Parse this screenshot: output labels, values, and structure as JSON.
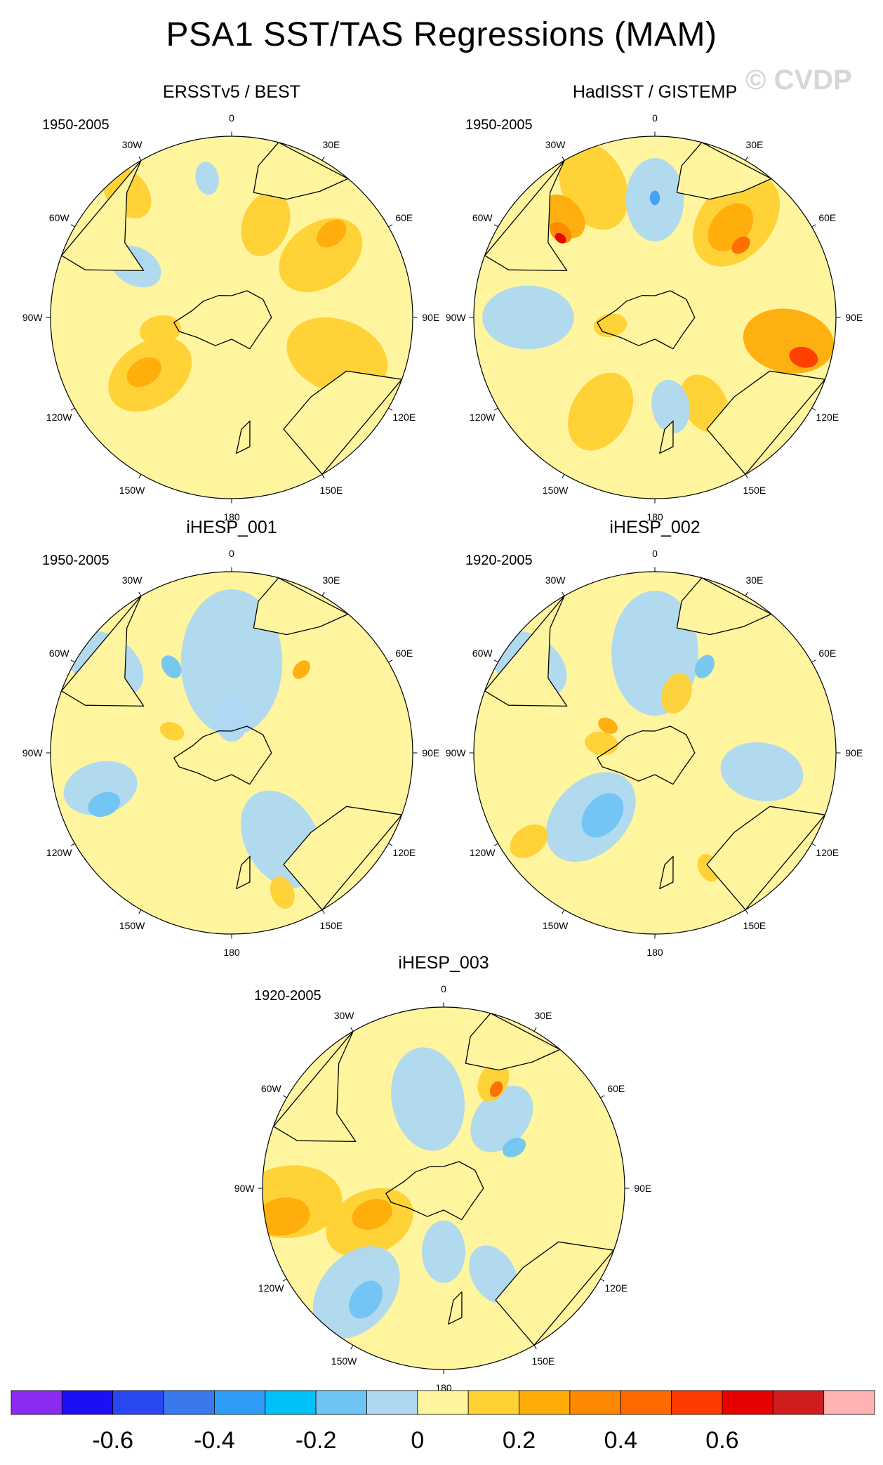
{
  "title": "PSA1 SST/TAS Regressions (MAM)",
  "watermark": "© CVDP",
  "longitude_labels": [
    "0",
    "30E",
    "60E",
    "90E",
    "120E",
    "150E",
    "180",
    "150W",
    "120W",
    "90W",
    "60W",
    "30W"
  ],
  "colors": {
    "landmass_outline": "#000000",
    "background_field": "#fff59e"
  },
  "panels": [
    {
      "id": "p1",
      "title": "ERSSTv5 / BEST",
      "period": "1950-2005",
      "blobs": [
        {
          "a": 20,
          "r": 0.55,
          "w": 0.16,
          "c": "#ffd133"
        },
        {
          "a": 55,
          "r": 0.6,
          "w": 0.22,
          "c": "#ffd133"
        },
        {
          "a": 50,
          "r": 0.72,
          "w": 0.08,
          "c": "#ffac0a"
        },
        {
          "a": -10,
          "r": 0.78,
          "w": 0.08,
          "c": "#aed8f2"
        },
        {
          "a": -60,
          "r": 0.62,
          "w": 0.06,
          "c": "#70c4f5"
        },
        {
          "a": -62,
          "r": 0.6,
          "w": 0.13,
          "c": "#aed8f2"
        },
        {
          "a": -100,
          "r": 0.4,
          "w": 0.1,
          "c": "#ffd133"
        },
        {
          "a": -125,
          "r": 0.55,
          "w": 0.22,
          "c": "#ffd133"
        },
        {
          "a": -122,
          "r": 0.57,
          "w": 0.09,
          "c": "#ffac0a"
        },
        {
          "a": 110,
          "r": 0.62,
          "w": 0.25,
          "c": "#ffd133"
        },
        {
          "a": -40,
          "r": 0.9,
          "w": 0.14,
          "c": "#ffd133"
        }
      ]
    },
    {
      "id": "p2",
      "title": "HadISST / GISTEMP",
      "period": "1950-2005",
      "blobs": [
        {
          "a": -25,
          "r": 0.8,
          "w": 0.22,
          "c": "#ffd133"
        },
        {
          "a": -42,
          "r": 0.75,
          "w": 0.12,
          "c": "#ffac0a"
        },
        {
          "a": -48,
          "r": 0.7,
          "w": 0.06,
          "c": "#ff8800"
        },
        {
          "a": -50,
          "r": 0.68,
          "w": 0.03,
          "c": "#e60000"
        },
        {
          "a": 0,
          "r": 0.65,
          "w": 0.2,
          "c": "#aed8f2"
        },
        {
          "a": 0,
          "r": 0.66,
          "w": 0.035,
          "c": "#3fa0f5"
        },
        {
          "a": 40,
          "r": 0.7,
          "w": 0.25,
          "c": "#ffd133"
        },
        {
          "a": 40,
          "r": 0.65,
          "w": 0.13,
          "c": "#ffac0a"
        },
        {
          "a": 50,
          "r": 0.62,
          "w": 0.05,
          "c": "#ff6a00"
        },
        {
          "a": 100,
          "r": 0.75,
          "w": 0.22,
          "c": "#ffac0a"
        },
        {
          "a": 105,
          "r": 0.85,
          "w": 0.07,
          "c": "#ff3a00"
        },
        {
          "a": -90,
          "r": 0.7,
          "w": 0.22,
          "c": "#aed8f2"
        },
        {
          "a": -150,
          "r": 0.6,
          "w": 0.2,
          "c": "#ffd133"
        },
        {
          "a": 150,
          "r": 0.55,
          "w": 0.15,
          "c": "#ffd133"
        },
        {
          "a": -100,
          "r": 0.25,
          "w": 0.08,
          "c": "#ffd133"
        },
        {
          "a": 170,
          "r": 0.5,
          "w": 0.13,
          "c": "#aed8f2"
        }
      ]
    },
    {
      "id": "p3",
      "title": "iHESP_001",
      "period": "1950-2005",
      "blobs": [
        {
          "a": -55,
          "r": 0.85,
          "w": 0.2,
          "c": "#aed8f2"
        },
        {
          "a": 0,
          "r": 0.5,
          "w": 0.35,
          "c": "#aed8f2"
        },
        {
          "a": -105,
          "r": 0.75,
          "w": 0.18,
          "c": "#aed8f2"
        },
        {
          "a": -112,
          "r": 0.76,
          "w": 0.08,
          "c": "#70c4f5"
        },
        {
          "a": 150,
          "r": 0.55,
          "w": 0.25,
          "c": "#aed8f2"
        },
        {
          "a": -35,
          "r": 0.58,
          "w": 0.06,
          "c": "#70c4f5"
        },
        {
          "a": 40,
          "r": 0.6,
          "w": 0.05,
          "c": "#ffac0a"
        },
        {
          "a": 160,
          "r": 0.82,
          "w": 0.08,
          "c": "#ffd133"
        },
        {
          "a": -70,
          "r": 0.35,
          "w": 0.06,
          "c": "#ffd133"
        },
        {
          "a": 0,
          "r": 0.2,
          "w": 0.12,
          "c": "#aed8f2"
        }
      ]
    },
    {
      "id": "p4",
      "title": "iHESP_002",
      "period": "1920-2005",
      "blobs": [
        {
          "a": -55,
          "r": 0.85,
          "w": 0.2,
          "c": "#aed8f2"
        },
        {
          "a": 0,
          "r": 0.55,
          "w": 0.3,
          "c": "#aed8f2"
        },
        {
          "a": 30,
          "r": 0.55,
          "w": 0.06,
          "c": "#70c4f5"
        },
        {
          "a": -135,
          "r": 0.5,
          "w": 0.25,
          "c": "#aed8f2"
        },
        {
          "a": -140,
          "r": 0.45,
          "w": 0.12,
          "c": "#70c4f5"
        },
        {
          "a": -80,
          "r": 0.3,
          "w": 0.08,
          "c": "#ffd133"
        },
        {
          "a": -60,
          "r": 0.3,
          "w": 0.05,
          "c": "#ffac0a"
        },
        {
          "a": -125,
          "r": 0.85,
          "w": 0.1,
          "c": "#ffd133"
        },
        {
          "a": 100,
          "r": 0.6,
          "w": 0.2,
          "c": "#aed8f2"
        },
        {
          "a": 155,
          "r": 0.7,
          "w": 0.07,
          "c": "#ffd133"
        },
        {
          "a": 20,
          "r": 0.35,
          "w": 0.1,
          "c": "#ffd133"
        }
      ]
    },
    {
      "id": "p5",
      "title": "iHESP_003",
      "period": "1920-2005",
      "blobs": [
        {
          "a": -95,
          "r": 0.85,
          "w": 0.25,
          "c": "#ffd133"
        },
        {
          "a": -100,
          "r": 0.9,
          "w": 0.13,
          "c": "#ffac0a"
        },
        {
          "a": -115,
          "r": 0.45,
          "w": 0.22,
          "c": "#ffd133"
        },
        {
          "a": -110,
          "r": 0.42,
          "w": 0.1,
          "c": "#ffac0a"
        },
        {
          "a": -140,
          "r": 0.75,
          "w": 0.25,
          "c": "#aed8f2"
        },
        {
          "a": -145,
          "r": 0.75,
          "w": 0.1,
          "c": "#70c4f5"
        },
        {
          "a": -10,
          "r": 0.5,
          "w": 0.25,
          "c": "#aed8f2"
        },
        {
          "a": 40,
          "r": 0.5,
          "w": 0.18,
          "c": "#aed8f2"
        },
        {
          "a": 25,
          "r": 0.65,
          "w": 0.1,
          "c": "#ffd133"
        },
        {
          "a": 28,
          "r": 0.62,
          "w": 0.04,
          "c": "#ff6a00"
        },
        {
          "a": 60,
          "r": 0.45,
          "w": 0.06,
          "c": "#70c4f5"
        },
        {
          "a": 150,
          "r": 0.55,
          "w": 0.15,
          "c": "#aed8f2"
        },
        {
          "a": 180,
          "r": 0.35,
          "w": 0.15,
          "c": "#aed8f2"
        }
      ]
    }
  ],
  "colorbar": {
    "colors": [
      "#8b2bf0",
      "#1a0ff5",
      "#2a48f0",
      "#3a78ee",
      "#2f9cf7",
      "#00c0f8",
      "#70c4f5",
      "#aed8f2",
      "#fff59e",
      "#ffd133",
      "#ffac0a",
      "#ff8800",
      "#ff6a00",
      "#ff3a00",
      "#e60000",
      "#d01e1e",
      "#ffb3b3"
    ],
    "tick_labels": [
      "-0.6",
      "-0.4",
      "-0.2",
      "0",
      "0.2",
      "0.4",
      "0.6"
    ]
  }
}
